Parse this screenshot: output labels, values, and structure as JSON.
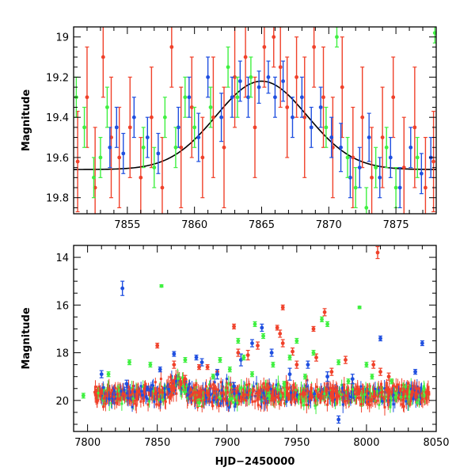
{
  "colors": {
    "red": "#f0412a",
    "blue": "#1f4fe0",
    "green": "#3ff040",
    "model": "#000000"
  },
  "chart_data": [
    {
      "type": "scatter",
      "panel": "top",
      "xlabel": "",
      "ylabel": "Magnitude",
      "xlim": [
        7851,
        7878
      ],
      "ylim": [
        19.88,
        18.95
      ],
      "y_inverted": true,
      "xticks": [
        7855,
        7860,
        7865,
        7870,
        7875
      ],
      "yticks": [
        19.0,
        19.2,
        19.4,
        19.6,
        19.8
      ],
      "ytick_labels": [
        "19",
        "19.2",
        "19.4",
        "19.6",
        "19.8"
      ],
      "model_curve": {
        "type": "gaussian",
        "baseline": 19.66,
        "peak_mag": 19.22,
        "center": 7865.0,
        "sigma": 3.4
      },
      "series": [
        {
          "color_key": "red",
          "points": [
            [
              7851.3,
              19.62,
              0.25
            ],
            [
              7852.0,
              19.3,
              0.25
            ],
            [
              7852.6,
              19.75,
              0.3
            ],
            [
              7853.2,
              19.1,
              0.2
            ],
            [
              7853.8,
              19.5,
              0.3
            ],
            [
              7854.4,
              19.6,
              0.25
            ],
            [
              7855.2,
              19.45,
              0.25
            ],
            [
              7856.0,
              19.7,
              0.2
            ],
            [
              7856.8,
              19.4,
              0.25
            ],
            [
              7857.6,
              19.75,
              0.25
            ],
            [
              7858.3,
              19.05,
              0.2
            ],
            [
              7859.0,
              19.55,
              0.3
            ],
            [
              7859.8,
              19.35,
              0.25
            ],
            [
              7860.6,
              19.6,
              0.2
            ],
            [
              7861.4,
              19.4,
              0.3
            ],
            [
              7862.2,
              19.55,
              0.3
            ],
            [
              7863.0,
              19.2,
              0.25
            ],
            [
              7863.8,
              19.1,
              0.2
            ],
            [
              7864.5,
              19.45,
              0.25
            ],
            [
              7865.2,
              19.05,
              0.2
            ],
            [
              7865.9,
              19.0,
              0.15
            ],
            [
              7866.4,
              19.15,
              0.2
            ],
            [
              7866.9,
              19.35,
              0.25
            ],
            [
              7867.6,
              19.2,
              0.2
            ],
            [
              7868.2,
              19.4,
              0.3
            ],
            [
              7868.9,
              19.05,
              0.2
            ],
            [
              7869.6,
              19.3,
              0.25
            ],
            [
              7870.3,
              19.55,
              0.25
            ],
            [
              7871.0,
              19.25,
              0.25
            ],
            [
              7871.8,
              19.6,
              0.25
            ],
            [
              7872.5,
              19.4,
              0.25
            ],
            [
              7873.2,
              19.7,
              0.25
            ],
            [
              7874.0,
              19.5,
              0.25
            ],
            [
              7874.8,
              19.3,
              0.2
            ],
            [
              7875.6,
              19.65,
              0.25
            ],
            [
              7876.4,
              19.45,
              0.3
            ],
            [
              7877.2,
              19.75,
              0.25
            ],
            [
              7877.8,
              19.62,
              0.25
            ]
          ]
        },
        {
          "color_key": "blue",
          "points": [
            [
              7853.7,
              19.55,
              0.1
            ],
            [
              7854.2,
              19.45,
              0.1
            ],
            [
              7854.7,
              19.58,
              0.1
            ],
            [
              7855.5,
              19.4,
              0.1
            ],
            [
              7856.5,
              19.5,
              0.1
            ],
            [
              7857.3,
              19.58,
              0.1
            ],
            [
              7858.8,
              19.45,
              0.1
            ],
            [
              7859.6,
              19.3,
              0.1
            ],
            [
              7860.3,
              19.5,
              0.12
            ],
            [
              7861.0,
              19.2,
              0.1
            ],
            [
              7862.0,
              19.4,
              0.12
            ],
            [
              7862.8,
              19.3,
              0.1
            ],
            [
              7863.4,
              19.22,
              0.1
            ],
            [
              7864.0,
              19.3,
              0.1
            ],
            [
              7864.8,
              19.25,
              0.08
            ],
            [
              7865.5,
              19.2,
              0.08
            ],
            [
              7866.0,
              19.3,
              0.1
            ],
            [
              7866.6,
              19.22,
              0.1
            ],
            [
              7867.3,
              19.4,
              0.1
            ],
            [
              7868.0,
              19.3,
              0.1
            ],
            [
              7868.7,
              19.45,
              0.1
            ],
            [
              7869.4,
              19.35,
              0.1
            ],
            [
              7870.2,
              19.5,
              0.1
            ],
            [
              7870.9,
              19.55,
              0.12
            ],
            [
              7871.6,
              19.7,
              0.1
            ],
            [
              7872.3,
              19.65,
              0.1
            ],
            [
              7873.0,
              19.5,
              0.12
            ],
            [
              7873.8,
              19.7,
              0.1
            ],
            [
              7874.6,
              19.6,
              0.1
            ],
            [
              7875.3,
              19.75,
              0.1
            ],
            [
              7876.1,
              19.55,
              0.1
            ],
            [
              7876.9,
              19.68,
              0.1
            ],
            [
              7877.6,
              19.6,
              0.1
            ]
          ]
        },
        {
          "color_key": "green",
          "points": [
            [
              7851.2,
              19.3,
              0.1
            ],
            [
              7851.8,
              19.45,
              0.1
            ],
            [
              7852.5,
              19.7,
              0.1
            ],
            [
              7853.0,
              19.6,
              0.1
            ],
            [
              7853.5,
              19.35,
              0.1
            ],
            [
              7856.2,
              19.55,
              0.1
            ],
            [
              7857.0,
              19.65,
              0.1
            ],
            [
              7857.8,
              19.4,
              0.1
            ],
            [
              7858.6,
              19.55,
              0.1
            ],
            [
              7859.3,
              19.3,
              0.1
            ],
            [
              7860.0,
              19.45,
              0.1
            ],
            [
              7861.2,
              19.35,
              0.1
            ],
            [
              7862.5,
              19.15,
              0.1
            ],
            [
              7863.2,
              19.3,
              0.1
            ],
            [
              7864.2,
              19.2,
              0.1
            ],
            [
              7869.8,
              19.45,
              0.1
            ],
            [
              7870.6,
              19.0,
              0.05
            ],
            [
              7871.4,
              19.6,
              0.1
            ],
            [
              7872.0,
              19.75,
              0.1
            ],
            [
              7872.8,
              19.85,
              0.1
            ],
            [
              7873.5,
              19.65,
              0.1
            ],
            [
              7874.3,
              19.55,
              0.1
            ],
            [
              7875.0,
              19.75,
              0.1
            ],
            [
              7876.6,
              19.6,
              0.1
            ],
            [
              7877.9,
              18.98,
              0.05
            ]
          ]
        }
      ]
    },
    {
      "type": "scatter",
      "panel": "bottom",
      "xlabel": "HJD−2450000",
      "ylabel": "Magnitude",
      "xlim": [
        7790,
        8050
      ],
      "ylim": [
        21.3,
        13.5
      ],
      "y_inverted": true,
      "xticks": [
        7800,
        7850,
        7900,
        7950,
        8000,
        8050
      ],
      "yticks": [
        14,
        16,
        18,
        20
      ],
      "baseline_band": {
        "x_start": 7805,
        "x_end": 8045,
        "center_mag": 19.75,
        "spread": 0.35,
        "bump_center": 7865,
        "bump_depth": 0.45,
        "bump_sigma": 4
      },
      "series": [
        {
          "color_key": "red",
          "points": [
            [
              7862,
              18.5,
              0.15
            ],
            [
              7870,
              19.1,
              0.15
            ],
            [
              7880,
              18.6,
              0.1
            ],
            [
              7886,
              18.6,
              0.1
            ],
            [
              7893,
              18.8,
              0.1
            ],
            [
              7908,
              18.0,
              0.15
            ],
            [
              7915,
              18.1,
              0.2
            ],
            [
              7922,
              17.7,
              0.15
            ],
            [
              7936,
              16.95,
              0.1
            ],
            [
              7938,
              17.2,
              0.15
            ],
            [
              7940,
              17.6,
              0.15
            ],
            [
              7940,
              16.1,
              0.1
            ],
            [
              7947,
              17.95,
              0.15
            ],
            [
              7950,
              18.5,
              0.15
            ],
            [
              7962,
              17.0,
              0.1
            ],
            [
              7964,
              18.2,
              0.15
            ],
            [
              7970,
              16.3,
              0.15
            ],
            [
              7975,
              18.8,
              0.15
            ],
            [
              7985,
              18.3,
              0.15
            ],
            [
              8005,
              18.5,
              0.15
            ],
            [
              8008,
              13.8,
              0.25
            ],
            [
              8010,
              18.8,
              0.15
            ],
            [
              8016,
              19.0,
              0.15
            ],
            [
              7850,
              17.7,
              0.1
            ],
            [
              7905,
              16.9,
              0.1
            ]
          ]
        },
        {
          "color_key": "blue",
          "points": [
            [
              7825,
              15.3,
              0.3
            ],
            [
              7810,
              18.9,
              0.15
            ],
            [
              7828,
              19.3,
              0.15
            ],
            [
              7843,
              19.5,
              0.1
            ],
            [
              7852,
              18.7,
              0.1
            ],
            [
              7862,
              18.05,
              0.1
            ],
            [
              7878,
              18.2,
              0.1
            ],
            [
              7882,
              18.4,
              0.15
            ],
            [
              7893,
              18.9,
              0.2
            ],
            [
              7905,
              19.4,
              0.15
            ],
            [
              7910,
              18.3,
              0.25
            ],
            [
              7918,
              17.6,
              0.15
            ],
            [
              7925,
              16.95,
              0.15
            ],
            [
              7932,
              18.0,
              0.15
            ],
            [
              7945,
              18.9,
              0.25
            ],
            [
              7958,
              18.5,
              0.15
            ],
            [
              7972,
              19.0,
              0.2
            ],
            [
              7980,
              20.8,
              0.15
            ],
            [
              7990,
              19.1,
              0.2
            ],
            [
              8010,
              17.4,
              0.1
            ],
            [
              8040,
              17.6,
              0.1
            ],
            [
              8035,
              18.8,
              0.1
            ]
          ]
        },
        {
          "color_key": "green",
          "points": [
            [
              7797,
              19.8,
              0.1
            ],
            [
              7815,
              18.9,
              0.1
            ],
            [
              7830,
              18.4,
              0.1
            ],
            [
              7845,
              18.5,
              0.1
            ],
            [
              7853,
              15.2,
              0.05
            ],
            [
              7870,
              18.3,
              0.1
            ],
            [
              7890,
              19.0,
              0.1
            ],
            [
              7895,
              18.3,
              0.1
            ],
            [
              7902,
              18.7,
              0.1
            ],
            [
              7908,
              17.5,
              0.1
            ],
            [
              7912,
              18.2,
              0.1
            ],
            [
              7918,
              18.9,
              0.1
            ],
            [
              7920,
              16.8,
              0.1
            ],
            [
              7926,
              17.3,
              0.1
            ],
            [
              7933,
              18.5,
              0.1
            ],
            [
              7941,
              19.3,
              0.1
            ],
            [
              7945,
              18.2,
              0.1
            ],
            [
              7950,
              17.5,
              0.1
            ],
            [
              7956,
              19.0,
              0.1
            ],
            [
              7962,
              18.0,
              0.1
            ],
            [
              7968,
              16.6,
              0.1
            ],
            [
              7972,
              16.8,
              0.1
            ],
            [
              7980,
              18.4,
              0.1
            ],
            [
              7987,
              19.2,
              0.1
            ],
            [
              7995,
              16.1,
              0.05
            ],
            [
              8000,
              18.5,
              0.1
            ],
            [
              8004,
              19.0,
              0.1
            ],
            [
              8018,
              19.2,
              0.1
            ],
            [
              7880,
              20.1,
              0.15
            ],
            [
              7930,
              19.8,
              0.15
            ]
          ]
        }
      ]
    }
  ]
}
